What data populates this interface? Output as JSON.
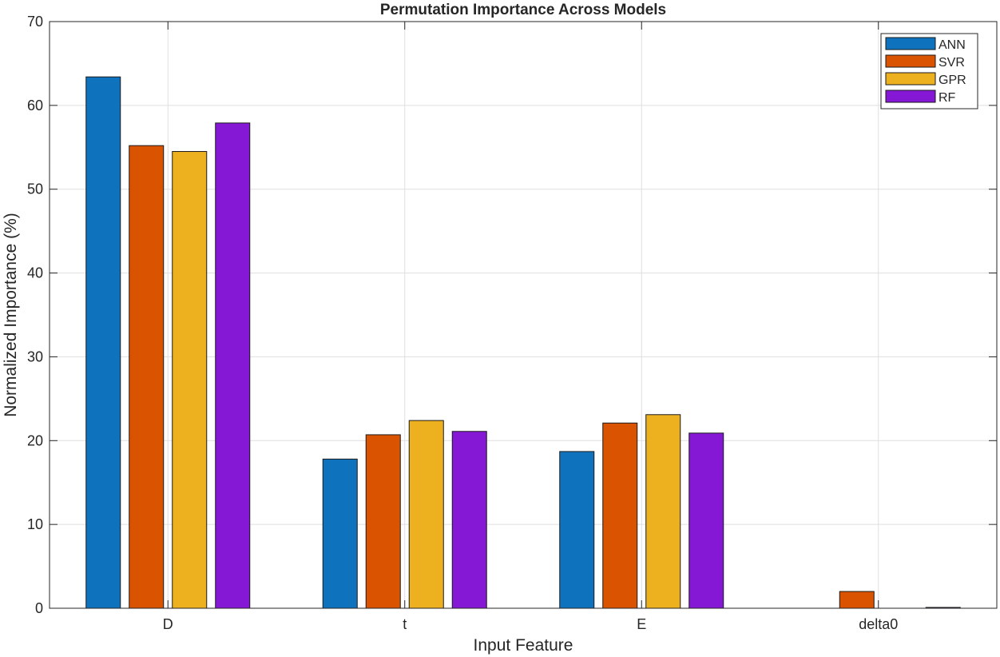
{
  "chart_data": {
    "type": "bar",
    "title": "Permutation Importance Across Models",
    "xlabel": "Input Feature",
    "ylabel": "Normalized Importance (%)",
    "categories": [
      "D",
      "t",
      "E",
      "delta0"
    ],
    "ylim": [
      0,
      70
    ],
    "yticks": [
      0,
      10,
      20,
      30,
      40,
      50,
      60,
      70
    ],
    "grid": true,
    "legend_position": "top-right",
    "series": [
      {
        "name": "ANN",
        "color": "#0F72BD",
        "values": [
          63.4,
          17.8,
          18.7,
          0.0
        ]
      },
      {
        "name": "SVR",
        "color": "#D95300",
        "values": [
          55.2,
          20.7,
          22.1,
          2.0
        ]
      },
      {
        "name": "GPR",
        "color": "#EDB120",
        "values": [
          54.5,
          22.4,
          23.1,
          0.0
        ]
      },
      {
        "name": "RF",
        "color": "#8518D4",
        "values": [
          57.9,
          21.1,
          20.9,
          0.1
        ]
      }
    ]
  }
}
